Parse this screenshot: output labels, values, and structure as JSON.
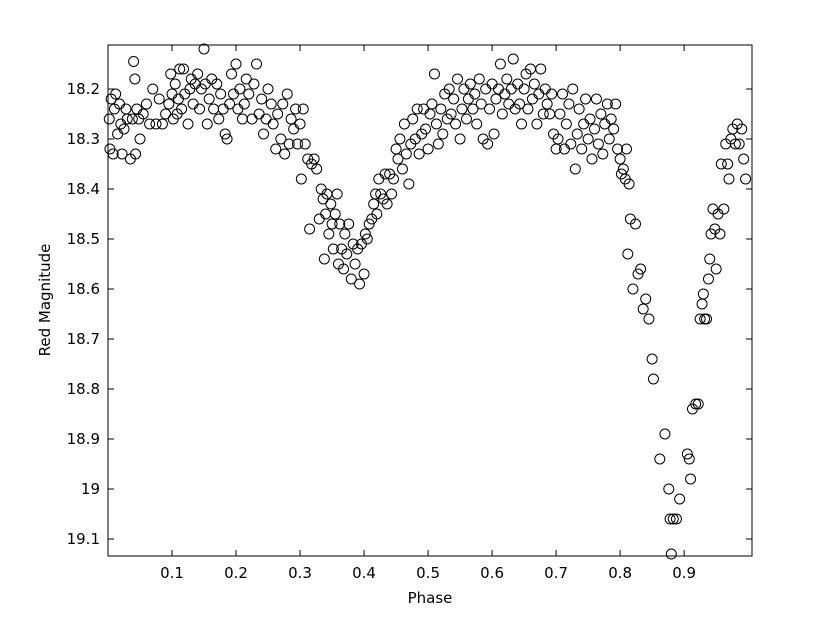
{
  "chart_data": {
    "type": "scatter",
    "x_label": "Phase",
    "y_label": "Red Magnitude",
    "xlim": [
      0,
      1.006
    ],
    "ylim": [
      19.134,
      18.112
    ],
    "xticks": [
      0.1,
      0.2,
      0.3,
      0.4,
      0.5,
      0.6,
      0.7,
      0.8,
      0.9
    ],
    "yticks": [
      18.2,
      18.3,
      18.4,
      18.5,
      18.6,
      18.7,
      18.8,
      18.9,
      19,
      19.1
    ],
    "grid": false,
    "marker": "hollow-circle",
    "color": "#000000",
    "x": [
      0.002,
      0.003,
      0.005,
      0.008,
      0.01,
      0.012,
      0.015,
      0.018,
      0.02,
      0.022,
      0.025,
      0.028,
      0.03,
      0.035,
      0.038,
      0.04,
      0.042,
      0.043,
      0.045,
      0.048,
      0.05,
      0.055,
      0.06,
      0.065,
      0.07,
      0.075,
      0.08,
      0.085,
      0.09,
      0.095,
      0.098,
      0.1,
      0.102,
      0.105,
      0.108,
      0.11,
      0.112,
      0.115,
      0.118,
      0.12,
      0.125,
      0.128,
      0.13,
      0.133,
      0.136,
      0.14,
      0.143,
      0.146,
      0.15,
      0.152,
      0.155,
      0.158,
      0.162,
      0.165,
      0.17,
      0.173,
      0.176,
      0.18,
      0.183,
      0.186,
      0.19,
      0.193,
      0.196,
      0.2,
      0.203,
      0.206,
      0.21,
      0.213,
      0.216,
      0.22,
      0.225,
      0.228,
      0.232,
      0.236,
      0.24,
      0.243,
      0.247,
      0.25,
      0.255,
      0.258,
      0.262,
      0.265,
      0.27,
      0.273,
      0.276,
      0.28,
      0.283,
      0.286,
      0.29,
      0.293,
      0.296,
      0.3,
      0.302,
      0.305,
      0.308,
      0.312,
      0.315,
      0.318,
      0.322,
      0.326,
      0.33,
      0.333,
      0.336,
      0.338,
      0.34,
      0.342,
      0.345,
      0.348,
      0.35,
      0.352,
      0.355,
      0.358,
      0.36,
      0.362,
      0.365,
      0.368,
      0.37,
      0.373,
      0.376,
      0.38,
      0.383,
      0.386,
      0.39,
      0.393,
      0.396,
      0.4,
      0.402,
      0.405,
      0.408,
      0.412,
      0.415,
      0.418,
      0.42,
      0.423,
      0.426,
      0.43,
      0.433,
      0.436,
      0.44,
      0.443,
      0.446,
      0.45,
      0.453,
      0.456,
      0.46,
      0.463,
      0.466,
      0.47,
      0.473,
      0.476,
      0.48,
      0.483,
      0.486,
      0.49,
      0.493,
      0.496,
      0.5,
      0.503,
      0.506,
      0.51,
      0.513,
      0.516,
      0.52,
      0.523,
      0.526,
      0.53,
      0.533,
      0.536,
      0.54,
      0.543,
      0.546,
      0.55,
      0.553,
      0.556,
      0.56,
      0.563,
      0.566,
      0.57,
      0.573,
      0.576,
      0.58,
      0.583,
      0.586,
      0.59,
      0.593,
      0.596,
      0.6,
      0.603,
      0.606,
      0.61,
      0.613,
      0.616,
      0.62,
      0.623,
      0.626,
      0.63,
      0.633,
      0.636,
      0.64,
      0.643,
      0.646,
      0.65,
      0.653,
      0.656,
      0.66,
      0.663,
      0.666,
      0.67,
      0.673,
      0.676,
      0.68,
      0.683,
      0.686,
      0.69,
      0.693,
      0.696,
      0.7,
      0.703,
      0.706,
      0.71,
      0.713,
      0.716,
      0.72,
      0.723,
      0.726,
      0.73,
      0.733,
      0.736,
      0.74,
      0.743,
      0.746,
      0.75,
      0.753,
      0.756,
      0.76,
      0.763,
      0.766,
      0.77,
      0.773,
      0.776,
      0.78,
      0.783,
      0.786,
      0.79,
      0.793,
      0.796,
      0.8,
      0.802,
      0.805,
      0.808,
      0.81,
      0.812,
      0.814,
      0.816,
      0.82,
      0.824,
      0.828,
      0.832,
      0.836,
      0.84,
      0.845,
      0.85,
      0.852,
      0.862,
      0.87,
      0.876,
      0.878,
      0.88,
      0.883,
      0.888,
      0.893,
      0.905,
      0.908,
      0.91,
      0.913,
      0.918,
      0.922,
      0.925,
      0.928,
      0.93,
      0.932,
      0.935,
      0.938,
      0.94,
      0.942,
      0.945,
      0.948,
      0.95,
      0.953,
      0.956,
      0.958,
      0.962,
      0.965,
      0.968,
      0.97,
      0.973,
      0.976,
      0.98,
      0.983,
      0.986,
      0.99,
      0.993,
      0.996
    ],
    "values": [
      18.26,
      18.32,
      18.22,
      18.33,
      18.24,
      18.21,
      18.29,
      18.23,
      18.27,
      18.33,
      18.28,
      18.24,
      18.26,
      18.34,
      18.26,
      18.145,
      18.18,
      18.33,
      18.24,
      18.26,
      18.3,
      18.25,
      18.23,
      18.27,
      18.2,
      18.27,
      18.22,
      18.27,
      18.25,
      18.23,
      18.17,
      18.21,
      18.26,
      18.19,
      18.25,
      18.22,
      18.16,
      18.24,
      18.16,
      18.21,
      18.27,
      18.2,
      18.18,
      18.23,
      18.19,
      18.17,
      18.24,
      18.2,
      18.12,
      18.19,
      18.27,
      18.22,
      18.18,
      18.24,
      18.19,
      18.26,
      18.21,
      18.24,
      18.29,
      18.3,
      18.23,
      18.17,
      18.21,
      18.15,
      18.24,
      18.2,
      18.26,
      18.23,
      18.18,
      18.21,
      18.26,
      18.19,
      18.15,
      18.25,
      18.22,
      18.29,
      18.26,
      18.2,
      18.23,
      18.27,
      18.32,
      18.25,
      18.3,
      18.23,
      18.33,
      18.21,
      18.31,
      18.26,
      18.28,
      18.24,
      18.31,
      18.27,
      18.38,
      18.24,
      18.31,
      18.34,
      18.48,
      18.35,
      18.34,
      18.36,
      18.46,
      18.4,
      18.42,
      18.54,
      18.45,
      18.41,
      18.49,
      18.43,
      18.47,
      18.52,
      18.45,
      18.41,
      18.55,
      18.47,
      18.52,
      18.56,
      18.49,
      18.53,
      18.47,
      18.58,
      18.51,
      18.55,
      18.52,
      18.59,
      18.51,
      18.57,
      18.49,
      18.5,
      18.47,
      18.46,
      18.43,
      18.41,
      18.45,
      18.38,
      18.41,
      18.42,
      18.37,
      18.43,
      18.37,
      18.41,
      18.38,
      18.32,
      18.34,
      18.3,
      18.36,
      18.27,
      18.33,
      18.39,
      18.31,
      18.26,
      18.3,
      18.24,
      18.33,
      18.29,
      18.24,
      18.28,
      18.32,
      18.25,
      18.23,
      18.17,
      18.27,
      18.31,
      18.24,
      18.29,
      18.21,
      18.26,
      18.2,
      18.25,
      18.22,
      18.27,
      18.18,
      18.3,
      18.24,
      18.2,
      18.26,
      18.22,
      18.19,
      18.24,
      18.21,
      18.27,
      18.18,
      18.23,
      18.3,
      18.2,
      18.31,
      18.24,
      18.19,
      18.29,
      18.22,
      18.2,
      18.15,
      18.25,
      18.21,
      18.18,
      18.23,
      18.2,
      18.14,
      18.24,
      18.19,
      18.23,
      18.27,
      18.2,
      18.17,
      18.24,
      18.16,
      18.22,
      18.19,
      18.27,
      18.21,
      18.16,
      18.25,
      18.2,
      18.23,
      18.25,
      18.21,
      18.29,
      18.32,
      18.3,
      18.25,
      18.21,
      18.32,
      18.27,
      18.23,
      18.31,
      18.2,
      18.36,
      18.29,
      18.24,
      18.32,
      18.27,
      18.22,
      18.3,
      18.26,
      18.34,
      18.28,
      18.22,
      18.31,
      18.25,
      18.33,
      18.27,
      18.23,
      18.3,
      18.26,
      18.28,
      18.23,
      18.32,
      18.34,
      18.37,
      18.36,
      18.38,
      18.32,
      18.53,
      18.39,
      18.46,
      18.6,
      18.47,
      18.57,
      18.56,
      18.64,
      18.62,
      18.66,
      18.74,
      18.78,
      18.94,
      18.89,
      19.0,
      19.06,
      19.13,
      19.06,
      19.06,
      19.02,
      18.93,
      18.94,
      18.98,
      18.84,
      18.83,
      18.83,
      18.66,
      18.63,
      18.61,
      18.66,
      18.66,
      18.58,
      18.54,
      18.49,
      18.44,
      18.48,
      18.56,
      18.45,
      18.49,
      18.35,
      18.44,
      18.31,
      18.35,
      18.38,
      18.3,
      18.28,
      18.31,
      18.27,
      18.31,
      18.28,
      18.34,
      18.38
    ]
  }
}
